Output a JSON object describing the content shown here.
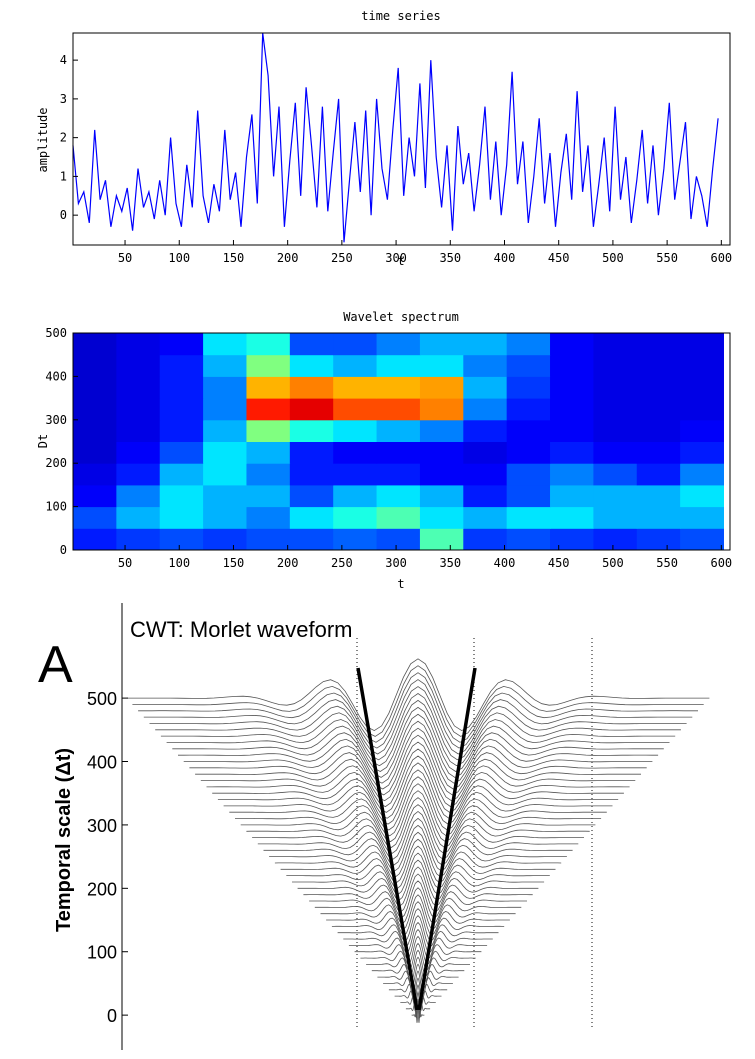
{
  "chart_data": [
    {
      "type": "line",
      "title": "time series",
      "xlabel": "t",
      "ylabel": "amplitude",
      "color": "#0000ff",
      "xlim": [
        2,
        608
      ],
      "ylim": [
        -0.77,
        4.7
      ],
      "xticks": [
        50,
        100,
        150,
        200,
        250,
        300,
        350,
        400,
        450,
        500,
        550,
        600
      ],
      "yticks": [
        0,
        1,
        2,
        3,
        4
      ],
      "x": [
        2,
        7,
        12,
        17,
        22,
        27,
        32,
        37,
        42,
        47,
        52,
        57,
        62,
        67,
        72,
        77,
        82,
        87,
        92,
        97,
        102,
        107,
        112,
        117,
        122,
        127,
        132,
        137,
        142,
        147,
        152,
        157,
        162,
        167,
        172,
        177,
        182,
        187,
        192,
        197,
        202,
        207,
        212,
        217,
        222,
        227,
        232,
        237,
        242,
        247,
        252,
        257,
        262,
        267,
        272,
        277,
        282,
        287,
        292,
        297,
        302,
        307,
        312,
        317,
        322,
        327,
        332,
        337,
        342,
        347,
        352,
        357,
        362,
        367,
        372,
        377,
        382,
        387,
        392,
        397,
        402,
        407,
        412,
        417,
        422,
        427,
        432,
        437,
        442,
        447,
        452,
        457,
        462,
        467,
        472,
        477,
        482,
        487,
        492,
        497,
        502,
        507,
        512,
        517,
        522,
        527,
        532,
        537,
        542,
        547,
        552,
        557,
        562,
        567,
        572,
        577,
        582,
        587,
        592,
        597
      ],
      "values": [
        1.8,
        0.3,
        0.6,
        -0.2,
        2.2,
        0.4,
        0.9,
        -0.3,
        0.5,
        0.1,
        0.7,
        -0.4,
        1.2,
        0.2,
        0.6,
        -0.1,
        0.9,
        0.0,
        2.0,
        0.3,
        -0.3,
        1.3,
        0.2,
        2.7,
        0.5,
        -0.2,
        0.8,
        0.1,
        2.2,
        0.4,
        1.1,
        -0.3,
        1.5,
        2.6,
        0.3,
        4.7,
        3.6,
        1.0,
        2.8,
        -0.3,
        1.4,
        2.9,
        0.5,
        3.3,
        1.8,
        0.2,
        2.8,
        0.1,
        1.6,
        3.0,
        -0.7,
        0.9,
        2.4,
        0.6,
        2.7,
        0.0,
        3.0,
        1.2,
        0.4,
        2.2,
        3.8,
        0.5,
        2.0,
        1.0,
        3.4,
        0.7,
        4.0,
        1.5,
        0.2,
        1.8,
        -0.4,
        2.3,
        0.8,
        1.6,
        0.1,
        1.3,
        2.8,
        0.4,
        1.9,
        0.0,
        1.3,
        3.7,
        0.8,
        1.9,
        -0.2,
        1.0,
        2.5,
        0.3,
        1.6,
        -0.3,
        1.1,
        2.1,
        0.4,
        3.2,
        0.6,
        1.8,
        -0.3,
        0.8,
        2.0,
        0.1,
        2.8,
        0.4,
        1.5,
        -0.2,
        0.9,
        2.2,
        0.3,
        1.8,
        0.0,
        1.2,
        2.9,
        0.4,
        1.4,
        2.4,
        -0.1,
        1.0,
        0.5,
        -0.3,
        1.2,
        2.5
      ]
    },
    {
      "type": "heatmap",
      "title": "Wavelet spectrum",
      "xlabel": "t",
      "ylabel": "Dt",
      "colormap": "jet",
      "xlim": [
        2,
        608
      ],
      "ylim": [
        0,
        500
      ],
      "xticks": [
        50,
        100,
        150,
        200,
        250,
        300,
        350,
        400,
        450,
        500,
        550,
        600
      ],
      "yticks": [
        0,
        100,
        200,
        300,
        400,
        500
      ],
      "x": [
        22,
        62,
        102,
        142,
        182,
        222,
        262,
        302,
        342,
        382,
        422,
        462,
        502,
        542,
        582
      ],
      "y": [
        25,
        75,
        125,
        175,
        225,
        275,
        325,
        375,
        425,
        475
      ],
      "z": [
        [
          0.15,
          0.18,
          0.2,
          0.18,
          0.2,
          0.2,
          0.22,
          0.2,
          0.45,
          0.18,
          0.2,
          0.18,
          0.16,
          0.18,
          0.2
        ],
        [
          0.2,
          0.3,
          0.35,
          0.3,
          0.25,
          0.35,
          0.4,
          0.45,
          0.35,
          0.3,
          0.35,
          0.35,
          0.3,
          0.3,
          0.3
        ],
        [
          0.12,
          0.25,
          0.35,
          0.3,
          0.3,
          0.2,
          0.3,
          0.35,
          0.3,
          0.15,
          0.2,
          0.3,
          0.3,
          0.3,
          0.35
        ],
        [
          0.1,
          0.15,
          0.3,
          0.35,
          0.25,
          0.15,
          0.15,
          0.15,
          0.12,
          0.12,
          0.2,
          0.25,
          0.2,
          0.15,
          0.25
        ],
        [
          0.08,
          0.12,
          0.2,
          0.35,
          0.3,
          0.15,
          0.12,
          0.12,
          0.12,
          0.1,
          0.12,
          0.15,
          0.12,
          0.12,
          0.15
        ],
        [
          0.08,
          0.1,
          0.15,
          0.3,
          0.5,
          0.4,
          0.35,
          0.3,
          0.25,
          0.15,
          0.12,
          0.12,
          0.1,
          0.1,
          0.12
        ],
        [
          0.08,
          0.1,
          0.15,
          0.25,
          0.85,
          0.9,
          0.8,
          0.8,
          0.75,
          0.25,
          0.15,
          0.12,
          0.1,
          0.1,
          0.1
        ],
        [
          0.08,
          0.1,
          0.15,
          0.25,
          0.7,
          0.75,
          0.7,
          0.7,
          0.72,
          0.3,
          0.18,
          0.12,
          0.1,
          0.1,
          0.1
        ],
        [
          0.08,
          0.1,
          0.15,
          0.3,
          0.5,
          0.35,
          0.3,
          0.35,
          0.35,
          0.25,
          0.2,
          0.12,
          0.1,
          0.1,
          0.1
        ],
        [
          0.08,
          0.1,
          0.12,
          0.35,
          0.4,
          0.2,
          0.2,
          0.25,
          0.3,
          0.3,
          0.25,
          0.12,
          0.1,
          0.1,
          0.1
        ]
      ]
    },
    {
      "type": "waveform",
      "panel_label": "A",
      "title": "CWT: Morlet waveform",
      "ylabel": "Temporal scale (Δt)",
      "ylim": [
        -55,
        650
      ],
      "yticks": [
        0,
        100,
        200,
        300,
        400,
        500
      ],
      "scales": [
        0,
        10,
        20,
        30,
        40,
        50,
        60,
        70,
        80,
        90,
        100,
        110,
        120,
        130,
        140,
        150,
        160,
        170,
        180,
        190,
        200,
        210,
        220,
        230,
        240,
        250,
        260,
        270,
        280,
        290,
        300,
        310,
        320,
        330,
        340,
        350,
        360,
        370,
        380,
        390,
        400,
        410,
        420,
        430,
        440,
        450,
        460,
        470,
        480,
        490,
        500
      ]
    }
  ]
}
